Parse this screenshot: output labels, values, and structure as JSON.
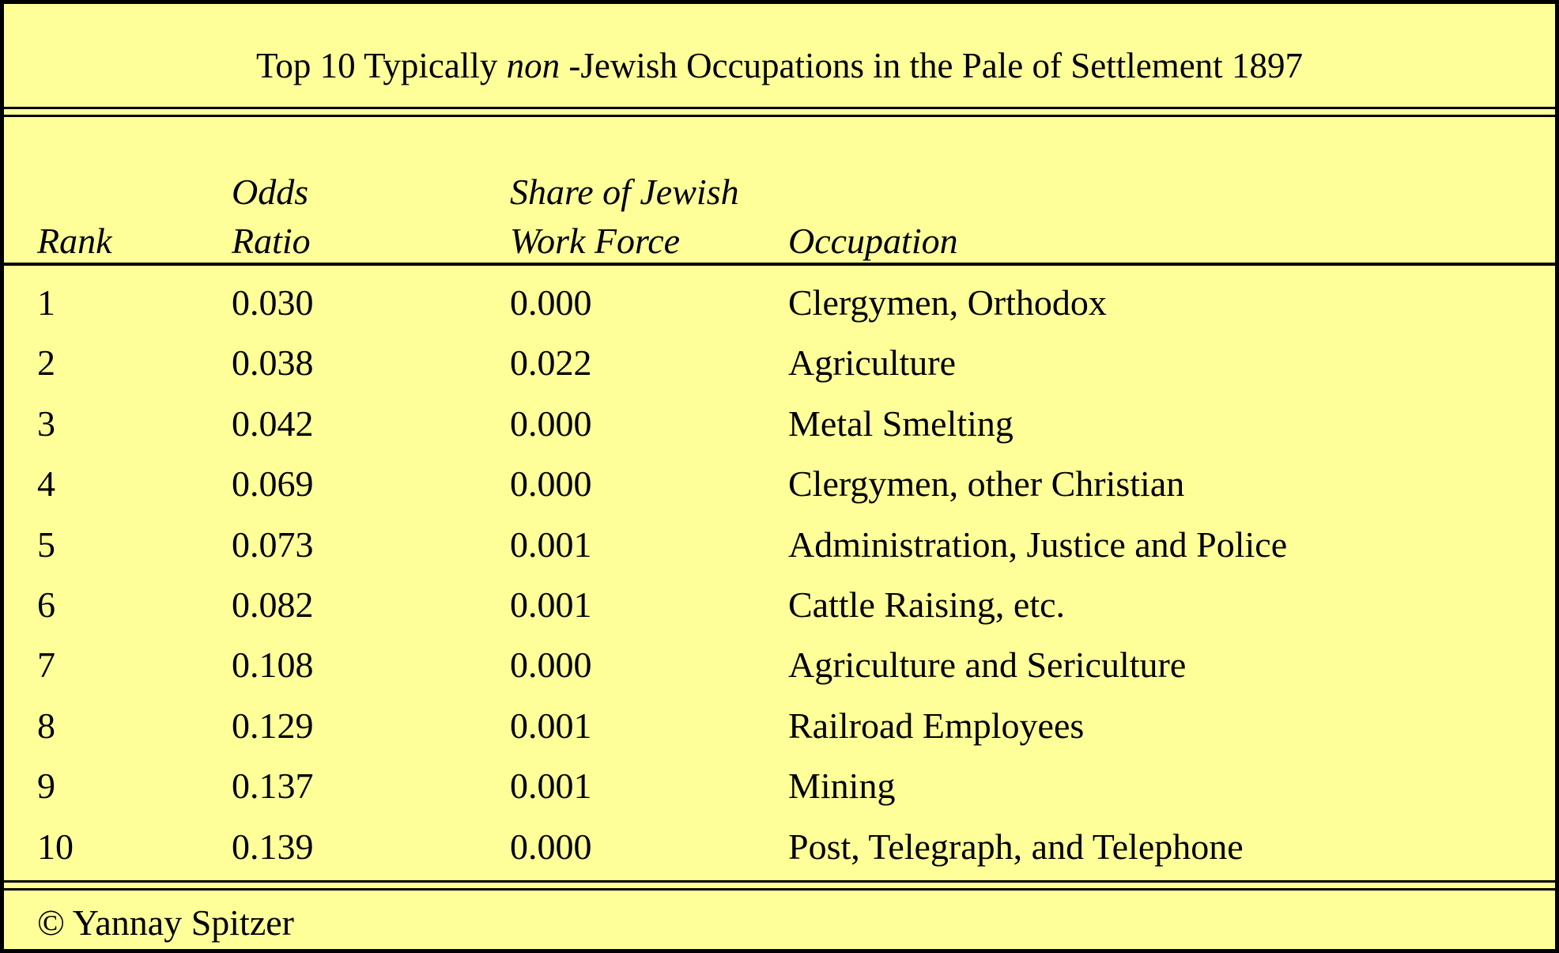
{
  "table": {
    "title_before": "Top 10 Typically ",
    "title_emphasis": "non",
    "title_after": " -Jewish Occupations in the Pale of Settlement 1897",
    "headers": {
      "rank": "Rank",
      "odds_line1": "Odds",
      "odds_line2": "Ratio",
      "share_line1": "Share of Jewish",
      "share_line2": "Work Force",
      "occupation": "Occupation"
    },
    "rows": [
      {
        "rank": "1",
        "odds": "0.030",
        "share": "0.000",
        "occupation": "Clergymen, Orthodox"
      },
      {
        "rank": "2",
        "odds": "0.038",
        "share": "0.022",
        "occupation": "Agriculture"
      },
      {
        "rank": "3",
        "odds": "0.042",
        "share": "0.000",
        "occupation": "Metal Smelting"
      },
      {
        "rank": "4",
        "odds": "0.069",
        "share": "0.000",
        "occupation": "Clergymen, other Christian"
      },
      {
        "rank": "5",
        "odds": "0.073",
        "share": "0.001",
        "occupation": "Administration, Justice and Police"
      },
      {
        "rank": "6",
        "odds": "0.082",
        "share": "0.001",
        "occupation": "Cattle Raising, etc."
      },
      {
        "rank": "7",
        "odds": "0.108",
        "share": "0.000",
        "occupation": "Agriculture and Sericulture"
      },
      {
        "rank": "8",
        "odds": "0.129",
        "share": "0.001",
        "occupation": "Railroad Employees"
      },
      {
        "rank": "9",
        "odds": "0.137",
        "share": "0.001",
        "occupation": "Mining"
      },
      {
        "rank": "10",
        "odds": "0.139",
        "share": "0.000",
        "occupation": "Post, Telegraph, and Telephone"
      }
    ],
    "footer": "© Yannay Spitzer"
  },
  "colors": {
    "background": "#ffff99",
    "text": "#000000",
    "border": "#000000"
  }
}
